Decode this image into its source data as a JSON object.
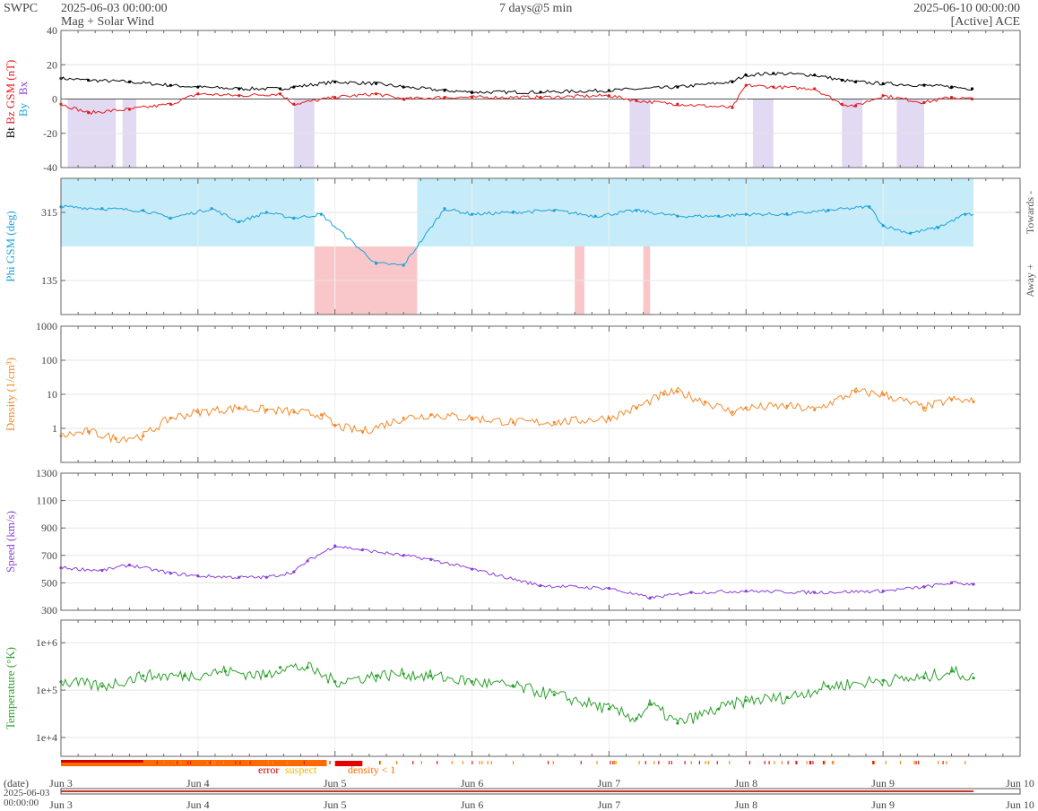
{
  "header": {
    "org": "SWPC",
    "start": "2025-06-03 00:00:00",
    "subtitle": "Mag + Solar Wind",
    "span": "7 days@5 min",
    "end": "2025-06-10 00:00:00",
    "source": "[Active] ACE"
  },
  "legend": {
    "error": "error",
    "suspect": "suspect",
    "density": "density < 1"
  },
  "footer": {
    "date_label": "(date)",
    "date_value": "2025-06-03",
    "time_value": "00:00:00"
  },
  "colors": {
    "bt": "#000000",
    "bz": "#e31a1c",
    "bx": "#8b3fd9",
    "by": "#1aa3d9",
    "phi": "#1aa3d9",
    "towards_fill": "#c6ecfa",
    "away_fill": "#f9c7c9",
    "density": "#f58a2b",
    "speed": "#8b3fd9",
    "temperature": "#2ca02c"
  },
  "chart_data": {
    "type": "line",
    "x_ticks": [
      "Jun 3",
      "Jun 4",
      "Jun 5",
      "Jun 6",
      "Jun 7",
      "Jun 8",
      "Jun 9",
      "Jun 10"
    ],
    "x_unit": "days since 2025-06-03 00:00",
    "data_end_day": 6.66,
    "panels": [
      {
        "id": "mag",
        "ylabel": "Bt",
        "ylabel_parts": [
          "Bt",
          "Bz GSM (nT)",
          "Bx",
          "By"
        ],
        "ylim": [
          -40,
          40
        ],
        "yticks": [
          "40",
          "20",
          "0",
          "-20",
          "-40"
        ],
        "series": [
          {
            "name": "Bt",
            "color": "#000000",
            "x": [
              0,
              0.2,
              0.5,
              0.8,
              1.0,
              1.3,
              1.6,
              1.7,
              2.0,
              2.3,
              2.5,
              2.8,
              3.0,
              3.5,
              4.0,
              4.5,
              4.9,
              5.0,
              5.2,
              5.5,
              5.7,
              5.8,
              6.0,
              6.3,
              6.5,
              6.65
            ],
            "y": [
              12,
              11,
              10,
              8,
              7,
              6,
              6,
              7,
              10,
              9,
              7,
              5,
              4,
              4,
              5,
              7,
              10,
              14,
              15,
              14,
              11,
              10,
              9,
              8,
              7,
              6
            ]
          },
          {
            "name": "Bz GSM",
            "color": "#e31a1c",
            "x": [
              0,
              0.2,
              0.5,
              0.8,
              1.0,
              1.3,
              1.6,
              1.7,
              2.0,
              2.3,
              2.5,
              2.8,
              3.0,
              3.5,
              4.0,
              4.2,
              4.5,
              4.9,
              5.0,
              5.2,
              5.5,
              5.7,
              5.8,
              6.0,
              6.3,
              6.5,
              6.65
            ],
            "y": [
              -3,
              -8,
              -6,
              -3,
              3,
              2,
              3,
              -3,
              1,
              3,
              0,
              1,
              1,
              1,
              2,
              -1,
              -3,
              -5,
              8,
              7,
              6,
              -3,
              -4,
              2,
              -2,
              1,
              0
            ]
          }
        ],
        "negative_bz_shading_days": [
          [
            0.05,
            0.4
          ],
          [
            0.45,
            0.55
          ],
          [
            1.7,
            1.85
          ],
          [
            4.15,
            4.3
          ],
          [
            5.05,
            5.2
          ],
          [
            5.7,
            5.85
          ],
          [
            6.1,
            6.3
          ]
        ]
      },
      {
        "id": "phi",
        "ylabel": "Phi GSM (deg)",
        "ylim": [
          45,
          405
        ],
        "yticks": [
          "315",
          "135"
        ],
        "side_labels": [
          "Towards -",
          "Away +"
        ],
        "series": [
          {
            "name": "Phi GSM",
            "color": "#1aa3d9",
            "x": [
              0,
              0.3,
              0.6,
              0.8,
              1.1,
              1.3,
              1.5,
              1.7,
              1.9,
              2.3,
              2.5,
              2.8,
              3.0,
              3.3,
              3.6,
              3.9,
              4.2,
              4.5,
              4.8,
              5.0,
              5.3,
              5.6,
              5.9,
              6.0,
              6.2,
              6.4,
              6.6
            ],
            "y": [
              330,
              325,
              320,
              300,
              325,
              290,
              315,
              300,
              310,
              180,
              175,
              325,
              310,
              315,
              320,
              305,
              320,
              305,
              305,
              310,
              310,
              320,
              330,
              280,
              260,
              275,
              310
            ]
          }
        ],
        "away_sector_days": [
          [
            1.85,
            2.6
          ],
          [
            3.75,
            3.82
          ],
          [
            4.25,
            4.3
          ]
        ],
        "towards_value_days": [
          [
            0,
            1.85
          ],
          [
            2.6,
            6.66
          ]
        ]
      },
      {
        "id": "density",
        "ylabel": "Density (1/cm³)",
        "scale": "log",
        "ylim": [
          0.1,
          1000
        ],
        "yticks": [
          "1000",
          "100",
          "10",
          "1"
        ],
        "series": [
          {
            "name": "Density",
            "color": "#f58a2b",
            "x": [
              0,
              0.2,
              0.4,
              0.6,
              0.8,
              1.0,
              1.3,
              1.5,
              1.7,
              1.9,
              2.0,
              2.2,
              2.5,
              2.7,
              3.0,
              3.3,
              3.6,
              4.0,
              4.2,
              4.4,
              4.5,
              4.7,
              4.9,
              5.0,
              5.3,
              5.5,
              5.8,
              6.0,
              6.3,
              6.5,
              6.66
            ],
            "y": [
              0.6,
              0.8,
              0.5,
              0.6,
              2,
              3,
              4,
              3.5,
              3,
              2.5,
              1.2,
              0.8,
              2,
              2.5,
              2,
              1.5,
              1.5,
              2,
              4,
              10,
              12,
              6,
              3,
              4,
              4.5,
              3.5,
              12,
              10,
              4,
              7,
              6
            ]
          }
        ]
      },
      {
        "id": "speed",
        "ylabel": "Speed (km/s)",
        "ylim": [
          300,
          1300
        ],
        "yticks": [
          "1300",
          "1100",
          "900",
          "700",
          "500",
          "300"
        ],
        "series": [
          {
            "name": "Speed",
            "color": "#8b3fd9",
            "x": [
              0,
              0.3,
              0.5,
              0.8,
              1.0,
              1.3,
              1.5,
              1.7,
              1.8,
              2.0,
              2.2,
              2.5,
              2.7,
              3.0,
              3.5,
              4.0,
              4.3,
              4.6,
              5.0,
              5.5,
              6.0,
              6.3,
              6.5,
              6.66
            ],
            "y": [
              610,
              590,
              630,
              570,
              550,
              540,
              540,
              580,
              660,
              770,
              740,
              700,
              670,
              600,
              480,
              460,
              390,
              430,
              440,
              430,
              440,
              470,
              500,
              490
            ]
          }
        ]
      },
      {
        "id": "temperature",
        "ylabel": "Temperature (°K)",
        "scale": "log",
        "ylim": [
          4000,
          3000000
        ],
        "yticks": [
          "1e+6",
          "1e+5",
          "1e+4"
        ],
        "series": [
          {
            "name": "Temperature",
            "color": "#2ca02c",
            "x": [
              0,
              0.3,
              0.6,
              0.9,
              1.2,
              1.5,
              1.6,
              1.8,
              2.0,
              2.3,
              2.5,
              2.7,
              3.0,
              3.3,
              3.6,
              4.0,
              4.2,
              4.3,
              4.5,
              4.8,
              5.0,
              5.3,
              5.6,
              6.0,
              6.3,
              6.5,
              6.66
            ],
            "y": [
              150000,
              120000,
              200000,
              200000,
              250000,
              200000,
              300000,
              300000,
              150000,
              200000,
              220000,
              200000,
              150000,
              120000,
              80000,
              40000,
              25000,
              50000,
              20000,
              40000,
              60000,
              70000,
              120000,
              160000,
              180000,
              250000,
              180000
            ]
          }
        ]
      }
    ]
  }
}
